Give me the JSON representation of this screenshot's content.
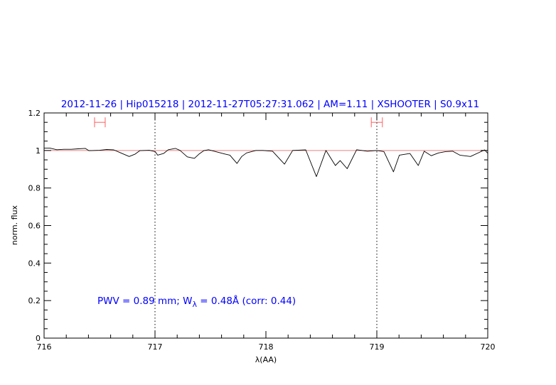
{
  "chart_data": {
    "type": "line",
    "title": "2012-11-26 | Hip015218 | 2012-11-27T05:27:31.062 | AM=1.11 | XSHOOTER | S0.9x11",
    "xlabel": "λ(AA)",
    "ylabel": "norm. flux",
    "xlim": [
      716,
      720
    ],
    "ylim": [
      0,
      1.2
    ],
    "xticks": [
      "716",
      "717",
      "718",
      "719",
      "720"
    ],
    "yticks": [
      "0",
      "0.2",
      "0.4",
      "0.6",
      "0.8",
      "1",
      "1.2"
    ],
    "grid": false,
    "reference_line": {
      "y": 1.0,
      "color": "#e88080"
    },
    "vertical_dotted_lines": [
      717,
      719
    ],
    "range_markers": [
      {
        "x": [
          716.455,
          716.551
        ],
        "y": 1.15,
        "color": "#ff6060"
      },
      {
        "x": [
          718.95,
          719.05
        ],
        "y": 1.15,
        "color": "#ff6060"
      }
    ],
    "annotation": {
      "prefix": "PWV = 0.89 mm; W",
      "subscript": "λ",
      "suffix": " = 0.48Å (corr: 0.44)"
    },
    "series": [
      {
        "color": "#000000",
        "x": [
          716.0,
          716.051,
          716.115,
          716.179,
          716.244,
          716.308,
          716.372,
          716.404,
          716.5,
          716.564,
          716.628,
          716.692,
          716.767,
          716.821,
          716.863,
          716.949,
          717.002,
          717.024,
          717.077,
          717.12,
          717.184,
          717.226,
          717.291,
          717.355,
          717.397,
          717.44,
          717.483,
          717.547,
          717.633,
          717.675,
          717.739,
          717.782,
          717.825,
          717.91,
          717.974,
          718.06,
          718.167,
          718.241,
          718.359,
          718.455,
          718.541,
          718.626,
          718.669,
          718.733,
          718.818,
          718.915,
          719.0,
          719.064,
          719.15,
          719.203,
          719.299,
          719.374,
          719.427,
          719.491,
          719.556,
          719.62,
          719.684,
          719.748,
          719.844,
          719.94,
          719.972,
          720.0
        ],
        "y": [
          1.013,
          1.013,
          1.004,
          1.006,
          1.006,
          1.009,
          1.011,
          0.999,
          1.001,
          1.005,
          1.003,
          0.987,
          0.968,
          0.981,
          0.999,
          1.001,
          0.994,
          0.975,
          0.984,
          1.004,
          1.011,
          1.0,
          0.966,
          0.958,
          0.981,
          0.999,
          1.004,
          0.994,
          0.981,
          0.975,
          0.931,
          0.968,
          0.987,
          1.0,
          1.0,
          0.996,
          0.927,
          1.0,
          1.003,
          0.861,
          1.0,
          0.92,
          0.946,
          0.903,
          1.004,
          0.996,
          1.0,
          0.994,
          0.886,
          0.975,
          0.984,
          0.92,
          0.996,
          0.972,
          0.987,
          0.994,
          0.996,
          0.975,
          0.968,
          0.994,
          1.003,
          0.985
        ]
      }
    ]
  }
}
